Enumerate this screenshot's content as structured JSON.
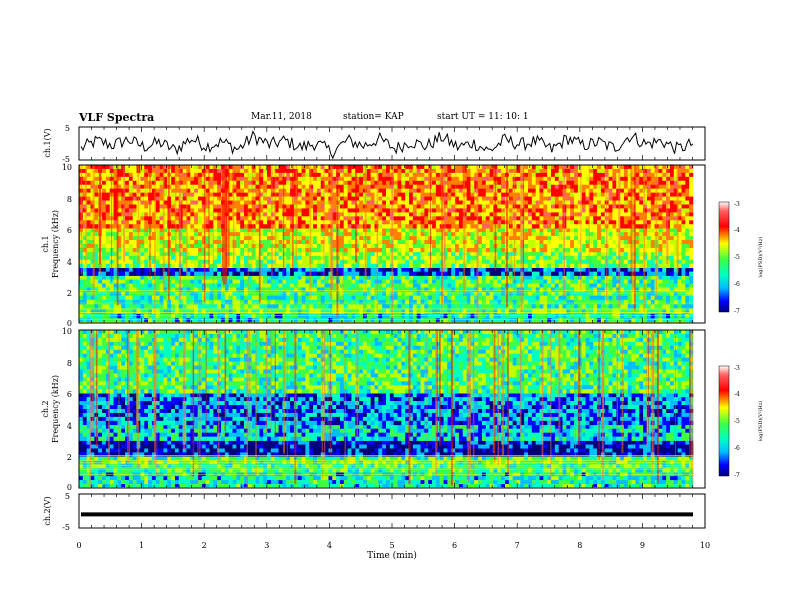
{
  "header": {
    "title": "VLF Spectra",
    "date": "Mar.11, 2018",
    "station": "station= KAP",
    "start": "start  UT =   11: 10: 1"
  },
  "colors": {
    "spectral_scale": [
      "#00007f",
      "#0000ff",
      "#00bfff",
      "#00ffc0",
      "#40ff40",
      "#c0ff00",
      "#ffff00",
      "#ff8000",
      "#ff0000",
      "#ff6060",
      "#ffffff"
    ],
    "waveform": "#000000"
  },
  "chart_data": [
    {
      "id": "ch1-waveform",
      "type": "line",
      "ylabel": "ch.1(V)",
      "ylim": [
        -5,
        5
      ],
      "yticks": [
        "5",
        "-5"
      ],
      "xlim": [
        0,
        10
      ],
      "values": [
        -1.5,
        0.8,
        -0.5,
        1.2,
        -1.0,
        0.3,
        -2.0,
        1.5,
        -0.8,
        0.5,
        -1.8,
        2.2,
        -0.4,
        0.9,
        -1.2,
        0.1,
        -2.6,
        1.0,
        -0.7,
        1.4,
        -1.6,
        0.6,
        -0.9,
        2.0,
        -1.1,
        0.2,
        -2.3,
        1.1,
        -0.3,
        0.7,
        -1.9,
        1.6,
        -0.6,
        0.4,
        -1.4,
        2.4,
        -0.2,
        0.8,
        -1.7,
        0.0
      ]
    },
    {
      "id": "ch1-spectrogram",
      "type": "heatmap",
      "ylabel": "ch.1",
      "ylabel2": "Frequency  (kHz)",
      "ylim": [
        0,
        10
      ],
      "yticks": [
        "10",
        "8",
        "6",
        "4",
        "2",
        "0"
      ],
      "xlim": [
        0,
        10
      ],
      "colorbar": {
        "label": "log(PSD)(V²/Hz)",
        "ticks": [
          "-3",
          "-4",
          "-5",
          "-6",
          "-7"
        ],
        "range": [
          -7,
          -3
        ]
      },
      "freq_bands_khz": [
        0,
        0.6,
        1.2,
        2.0,
        3.0,
        3.5,
        4.5,
        6.0,
        10
      ],
      "band_level_log_psd": [
        -5.6,
        -5.3,
        -5.4,
        -5.3,
        -6.4,
        -5.0,
        -4.6,
        -4.0
      ]
    },
    {
      "id": "ch2-spectrogram",
      "type": "heatmap",
      "ylabel": "ch.2",
      "ylabel2": "Frequency  (kHz)",
      "ylim": [
        0,
        10
      ],
      "yticks": [
        "10",
        "8",
        "6",
        "4",
        "2",
        "0"
      ],
      "xlim": [
        0,
        10
      ],
      "colorbar": {
        "label": "log(PSD)(V²/Hz)",
        "ticks": [
          "-3",
          "-4",
          "-5",
          "-6",
          "-7"
        ],
        "range": [
          -7,
          -3
        ]
      },
      "freq_bands_khz": [
        0,
        1.0,
        2.0,
        3.0,
        4.0,
        6.0,
        10
      ],
      "band_level_log_psd": [
        -5.6,
        -5.3,
        -6.6,
        -5.8,
        -6.1,
        -5.3
      ]
    },
    {
      "id": "ch2-waveform",
      "type": "line",
      "ylabel": "ch.2(V)",
      "ylim": [
        -5,
        5
      ],
      "yticks": [
        "5",
        "-5"
      ],
      "xlim": [
        0,
        10
      ],
      "xlabel": "Time  (min)",
      "xticks": [
        "0",
        "1",
        "2",
        "3",
        "4",
        "5",
        "6",
        "7",
        "8",
        "9",
        "10"
      ],
      "values": [
        -1.0,
        -1.0
      ]
    }
  ]
}
